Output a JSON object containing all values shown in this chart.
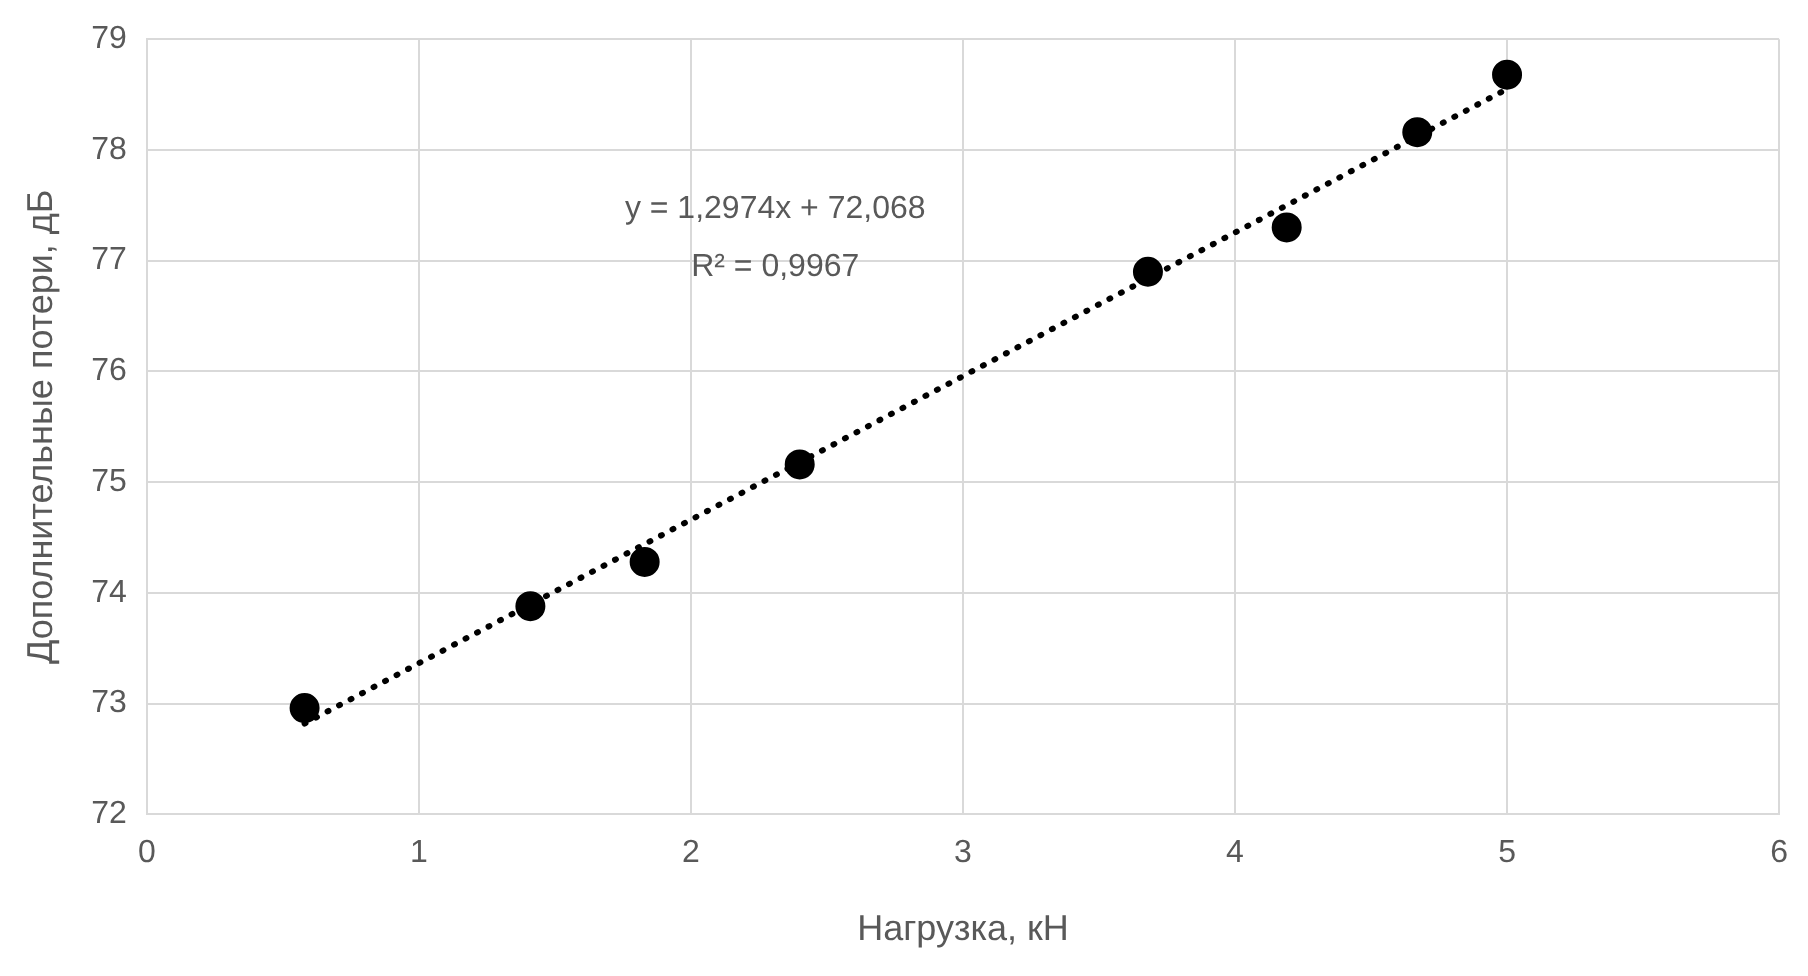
{
  "chart_data": {
    "type": "scatter",
    "xlabel": "Нагрузка, кН",
    "ylabel": "Дополнительные потери, дБ",
    "xlim": [
      0,
      6
    ],
    "xticks": [
      0,
      1,
      2,
      3,
      4,
      5,
      6
    ],
    "ylim": [
      72,
      79
    ],
    "yticks": [
      72,
      73,
      74,
      75,
      76,
      77,
      78,
      79
    ],
    "grid": true,
    "legend": false,
    "marker": "circle",
    "series": [
      {
        "color": "#000000",
        "x": [
          0.58,
          1.41,
          1.83,
          2.4,
          3.68,
          4.19,
          4.67,
          5.0
        ],
        "values": [
          72.96,
          73.88,
          74.28,
          75.16,
          76.9,
          77.3,
          78.16,
          78.68
        ]
      },
      {
        "type": "line",
        "color": "#000000",
        "line_style": "dotted",
        "marker": "none",
        "x": [
          0.58,
          5.0
        ],
        "values": [
          72.82,
          78.55
        ]
      }
    ],
    "annotations": [
      "y = 1,2974x + 72,068",
      "R² = 0,9967"
    ]
  }
}
